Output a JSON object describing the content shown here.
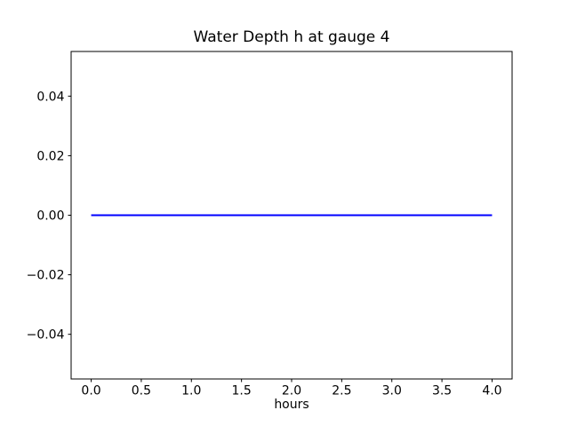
{
  "chart_data": {
    "type": "line",
    "title": "Water Depth h at gauge 4",
    "xlabel": "hours",
    "ylabel": "",
    "xlim": [
      -0.2,
      4.2
    ],
    "ylim": [
      -0.055,
      0.055
    ],
    "grid": false,
    "legend": null,
    "xticks": {
      "values": [
        0.0,
        0.5,
        1.0,
        1.5,
        2.0,
        2.5,
        3.0,
        3.5,
        4.0
      ],
      "labels": [
        "0.0",
        "0.5",
        "1.0",
        "1.5",
        "2.0",
        "2.5",
        "3.0",
        "3.5",
        "4.0"
      ]
    },
    "yticks": {
      "values": [
        -0.04,
        -0.02,
        0.0,
        0.02,
        0.04
      ],
      "labels": [
        "−0.04",
        "−0.02",
        "0.00",
        "0.02",
        "0.04"
      ]
    },
    "series": [
      {
        "name": "water-depth-line",
        "color": "#0000ff",
        "linewidth": 2,
        "x": [
          0.0,
          4.0
        ],
        "y": [
          0.0,
          0.0
        ]
      }
    ]
  }
}
